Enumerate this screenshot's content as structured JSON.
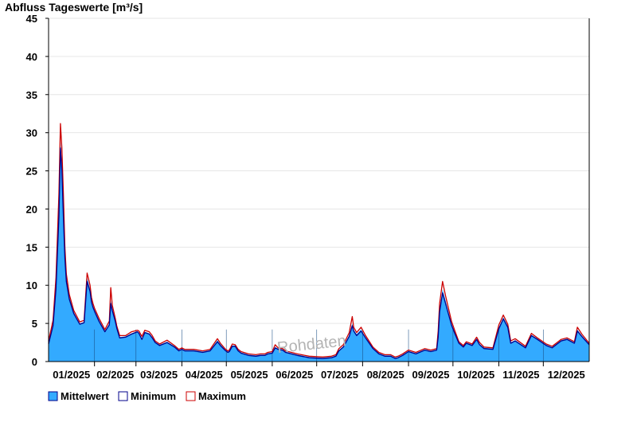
{
  "chart_data": {
    "type": "area",
    "title": "Abfluss Tageswerte [m³/s]",
    "xlabel": "",
    "ylabel": "Abfluss Tageswerte [m³/s]",
    "ylim": [
      0,
      45
    ],
    "yticks": [
      0,
      5,
      10,
      15,
      20,
      25,
      30,
      35,
      40,
      45
    ],
    "xlim_days": [
      0,
      365
    ],
    "month_labels": [
      "01/2025",
      "02/2025",
      "03/2025",
      "04/2025",
      "05/2025",
      "06/2025",
      "07/2025",
      "08/2025",
      "09/2025",
      "10/2025",
      "11/2025",
      "12/2025"
    ],
    "month_ticks_day": [
      31,
      59,
      90,
      120,
      151,
      181,
      212,
      243,
      273,
      304,
      334
    ],
    "grid": "horizontal",
    "legend_position": "bottom-left",
    "watermark": "Rohdaten",
    "colors": {
      "mittelwert_fill": "#33aaff",
      "minimum_line": "#00008b",
      "maximum_line": "#cc0000",
      "grid": "#e6e6e6",
      "axis": "#000000"
    },
    "x_days": [
      0,
      3,
      5,
      7,
      8,
      9,
      10,
      11,
      12,
      14,
      17,
      21,
      24,
      26,
      28,
      29,
      30,
      31,
      34,
      38,
      41,
      42,
      43,
      45,
      46,
      48,
      52,
      56,
      60,
      61,
      63,
      65,
      68,
      70,
      72,
      75,
      80,
      85,
      88,
      90,
      92,
      98,
      104,
      109,
      114,
      116,
      119,
      121,
      122,
      124,
      126,
      128,
      130,
      135,
      140,
      143,
      146,
      148,
      151,
      153,
      155,
      158,
      160,
      164,
      168,
      176,
      185,
      191,
      194,
      196,
      199,
      203,
      205,
      206,
      208,
      211,
      214,
      219,
      223,
      227,
      231,
      234,
      236,
      239,
      243,
      248,
      254,
      258,
      262,
      263,
      264,
      266,
      268,
      272,
      274,
      277,
      280,
      282,
      286,
      289,
      291,
      294,
      300,
      304,
      307,
      310,
      312,
      315,
      322,
      326,
      330,
      336,
      340,
      344,
      346,
      350,
      355,
      357,
      360,
      365
    ],
    "series": [
      {
        "name": "Mittelwert",
        "role": "mean",
        "values": [
          2.5,
          5,
          10,
          20,
          29,
          26,
          20,
          14,
          11,
          8.5,
          6.5,
          5,
          5.2,
          11,
          9.5,
          8,
          7.3,
          6.8,
          5.5,
          4,
          5,
          8,
          7,
          5.5,
          4.5,
          3.2,
          3.3,
          3.7,
          4,
          3.8,
          3,
          3.9,
          3.7,
          3.2,
          2.6,
          2.2,
          2.6,
          2,
          1.5,
          1.7,
          1.5,
          1.5,
          1.3,
          1.5,
          2.8,
          2.3,
          1.6,
          1.3,
          1.4,
          2.1,
          2.1,
          1.5,
          1.2,
          0.9,
          0.8,
          0.9,
          0.9,
          1.1,
          1.2,
          1.9,
          1.7,
          1.6,
          1.3,
          1.1,
          0.9,
          0.6,
          0.5,
          0.6,
          0.8,
          1.5,
          2,
          3.5,
          5,
          4.2,
          3.6,
          4.2,
          3.2,
          1.8,
          1.1,
          0.8,
          0.8,
          0.5,
          0.6,
          0.9,
          1.4,
          1.1,
          1.6,
          1.4,
          1.6,
          3.5,
          7,
          9.5,
          8,
          5,
          4,
          2.5,
          2,
          2.5,
          2.2,
          3,
          2.3,
          1.8,
          1.7,
          4.5,
          5.8,
          4.7,
          2.5,
          2.8,
          1.9,
          3.5,
          3,
          2.2,
          1.9,
          2.5,
          2.8,
          3,
          2.5,
          4.2,
          3.4,
          2.3
        ]
      },
      {
        "name": "Minimum",
        "role": "min",
        "values": [
          2.3,
          4.7,
          9.5,
          19,
          28,
          25,
          19,
          13.5,
          10.5,
          8.2,
          6.3,
          4.9,
          5.1,
          10.5,
          9.2,
          7.8,
          7.1,
          6.6,
          5.3,
          3.9,
          4.8,
          7.6,
          6.7,
          5.3,
          4.4,
          3.1,
          3.2,
          3.6,
          3.9,
          3.7,
          2.9,
          3.8,
          3.6,
          3.1,
          2.5,
          2.1,
          2.5,
          1.9,
          1.4,
          1.6,
          1.4,
          1.4,
          1.2,
          1.4,
          2.6,
          2.1,
          1.5,
          1.2,
          1.3,
          2,
          2,
          1.4,
          1.1,
          0.8,
          0.7,
          0.8,
          0.8,
          1,
          1.1,
          1.8,
          1.6,
          1.5,
          1.2,
          1,
          0.8,
          0.5,
          0.4,
          0.5,
          0.7,
          1.4,
          1.9,
          3.3,
          4.7,
          4,
          3.4,
          4,
          3.1,
          1.7,
          1,
          0.7,
          0.7,
          0.4,
          0.5,
          0.8,
          1.3,
          1,
          1.5,
          1.3,
          1.5,
          3.2,
          6.5,
          9,
          7.6,
          4.8,
          3.8,
          2.4,
          1.9,
          2.4,
          2.1,
          2.9,
          2.2,
          1.7,
          1.6,
          4.3,
          5.6,
          4.5,
          2.4,
          2.7,
          1.8,
          3.4,
          2.9,
          2.1,
          1.8,
          2.4,
          2.7,
          2.9,
          2.4,
          4,
          3.3,
          2.2
        ]
      },
      {
        "name": "Maximum",
        "role": "max",
        "values": [
          2.7,
          5.4,
          11,
          22,
          31.2,
          28,
          22,
          15,
          11.5,
          8.8,
          6.7,
          5.2,
          5.4,
          11.6,
          10,
          8.4,
          7.6,
          7,
          5.7,
          4.2,
          5.3,
          9.7,
          7.4,
          5.7,
          4.7,
          3.4,
          3.4,
          3.9,
          4.1,
          4,
          3.3,
          4.1,
          3.9,
          3.4,
          2.7,
          2.3,
          2.8,
          2.1,
          1.6,
          1.8,
          1.6,
          1.6,
          1.4,
          1.6,
          3,
          2.4,
          1.7,
          1.4,
          1.5,
          2.3,
          2.2,
          1.6,
          1.3,
          1,
          0.9,
          1,
          1,
          1.2,
          1.3,
          2.2,
          1.8,
          1.7,
          1.4,
          1.2,
          1,
          0.7,
          0.6,
          0.7,
          0.9,
          1.7,
          2.2,
          3.8,
          5.9,
          4.5,
          3.8,
          4.5,
          3.4,
          1.9,
          1.2,
          0.9,
          0.9,
          0.6,
          0.7,
          1,
          1.5,
          1.2,
          1.7,
          1.5,
          1.7,
          4,
          7.6,
          10.5,
          8.6,
          5.3,
          4.2,
          2.6,
          2.1,
          2.6,
          2.3,
          3.2,
          2.5,
          1.9,
          1.8,
          4.8,
          6.1,
          4.9,
          2.7,
          3,
          2,
          3.7,
          3.1,
          2.3,
          2,
          2.6,
          2.9,
          3.1,
          2.6,
          4.5,
          3.6,
          2.4
        ]
      }
    ]
  },
  "legend": {
    "items": [
      {
        "label": "Mittelwert",
        "swatch_fill": "#33aaff",
        "swatch_border": "#00008b"
      },
      {
        "label": "Minimum",
        "swatch_fill": "#ffffff",
        "swatch_border": "#00008b"
      },
      {
        "label": "Maximum",
        "swatch_fill": "#ffffff",
        "swatch_border": "#cc0000"
      }
    ]
  }
}
